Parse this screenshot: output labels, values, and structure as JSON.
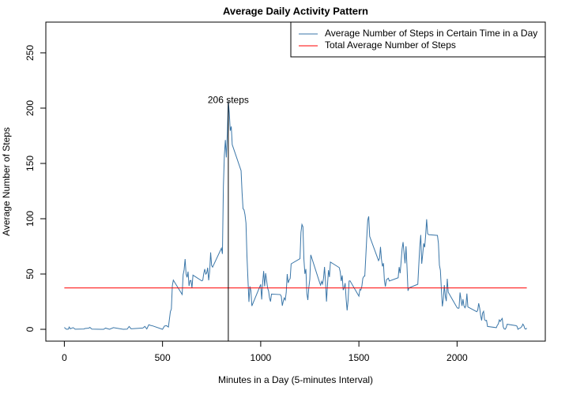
{
  "chart_data": {
    "type": "line",
    "title": "Average Daily Activity Pattern",
    "x_label": "Minutes in a Day (5-minutes Interval)",
    "y_label": "Average Number of Steps",
    "xlim": [
      -94.2,
      2449.2
    ],
    "ylim": [
      -10.7,
      277.8
    ],
    "xticks": [
      0,
      500,
      1000,
      1500,
      2000
    ],
    "yticks": [
      0,
      50,
      100,
      150,
      200,
      250
    ],
    "legend_position": "topright",
    "series": [
      {
        "name": "Average Number of Steps in Certain Time in a Day",
        "color": "#3a76a8",
        "x": [
          0,
          10,
          20,
          25,
          30,
          45,
          55,
          100,
          105,
          125,
          130,
          140,
          200,
          210,
          230,
          250,
          300,
          320,
          330,
          340,
          400,
          410,
          420,
          430,
          440,
          450,
          500,
          510,
          520,
          530,
          540,
          545,
          550,
          555,
          600,
          605,
          610,
          615,
          620,
          625,
          630,
          635,
          640,
          645,
          650,
          655,
          700,
          705,
          710,
          715,
          720,
          725,
          730,
          735,
          740,
          745,
          750,
          755,
          800,
          805,
          810,
          815,
          820,
          825,
          830,
          835,
          840,
          845,
          850,
          855,
          900,
          905,
          910,
          915,
          920,
          925,
          930,
          935,
          940,
          945,
          950,
          955,
          1000,
          1005,
          1010,
          1015,
          1020,
          1025,
          1030,
          1035,
          1040,
          1045,
          1050,
          1055,
          1100,
          1105,
          1110,
          1115,
          1120,
          1125,
          1130,
          1135,
          1140,
          1145,
          1150,
          1155,
          1200,
          1205,
          1210,
          1215,
          1220,
          1225,
          1230,
          1235,
          1240,
          1245,
          1250,
          1255,
          1300,
          1305,
          1310,
          1315,
          1320,
          1325,
          1330,
          1335,
          1340,
          1345,
          1350,
          1355,
          1400,
          1405,
          1410,
          1415,
          1420,
          1425,
          1430,
          1435,
          1440,
          1445,
          1450,
          1455,
          1500,
          1505,
          1510,
          1515,
          1520,
          1525,
          1530,
          1535,
          1540,
          1545,
          1550,
          1555,
          1600,
          1605,
          1610,
          1615,
          1620,
          1625,
          1630,
          1635,
          1640,
          1645,
          1650,
          1655,
          1700,
          1705,
          1710,
          1715,
          1720,
          1725,
          1730,
          1735,
          1740,
          1745,
          1750,
          1755,
          1800,
          1805,
          1810,
          1815,
          1820,
          1825,
          1830,
          1835,
          1840,
          1845,
          1850,
          1855,
          1900,
          1905,
          1910,
          1915,
          1920,
          1925,
          1930,
          1935,
          1940,
          1945,
          1950,
          1955,
          2000,
          2005,
          2010,
          2015,
          2020,
          2025,
          2030,
          2035,
          2040,
          2045,
          2050,
          2055,
          2100,
          2105,
          2110,
          2115,
          2120,
          2125,
          2130,
          2135,
          2140,
          2145,
          2150,
          2155,
          2200,
          2205,
          2210,
          2215,
          2220,
          2225,
          2230,
          2235,
          2240,
          2245,
          2250,
          2255,
          2300,
          2305,
          2310,
          2315,
          2320,
          2325,
          2330,
          2335,
          2340,
          2345,
          2350,
          2355
        ],
        "values": [
          1.7,
          0.1,
          0.1,
          2.1,
          0.5,
          1.5,
          0.1,
          0.3,
          0.7,
          1.1,
          1.8,
          0.2,
          0,
          1.1,
          0,
          1.5,
          0,
          0.2,
          2.6,
          0.5,
          1.2,
          2.6,
          0.3,
          4.1,
          3.5,
          3.1,
          0,
          3,
          3.3,
          2.1,
          16,
          18.3,
          39.4,
          44.5,
          31.5,
          49.3,
          53.8,
          63.5,
          50,
          47,
          52.2,
          39.3,
          44,
          44.2,
          37.4,
          49,
          43.8,
          44.4,
          50.5,
          54.5,
          49.9,
          51,
          55.7,
          44.3,
          52.3,
          69.5,
          57.8,
          56.2,
          73.4,
          68.2,
          129.4,
          157.5,
          171.2,
          155.4,
          177.3,
          206.2,
          195.9,
          179.6,
          183.4,
          167,
          143.5,
          124,
          109.1,
          108.1,
          103.7,
          96,
          66.2,
          45.2,
          24.8,
          38.8,
          35,
          21.1,
          40.6,
          27,
          42.4,
          52.7,
          38.9,
          50.8,
          44.3,
          37.4,
          34.7,
          28.3,
          25.1,
          31.9,
          31.4,
          29.7,
          21.3,
          25.5,
          28.4,
          26.5,
          33.4,
          50,
          42,
          44.6,
          46,
          59.2,
          63.9,
          87.7,
          94.8,
          92.8,
          63.4,
          50.2,
          54.5,
          32.4,
          26.5,
          37.7,
          45.1,
          67.3,
          42.3,
          39.9,
          43.3,
          41,
          46.2,
          56.4,
          42.8,
          25.1,
          40,
          53.5,
          47.3,
          60.8,
          55.8,
          52,
          43.6,
          48.7,
          35.5,
          37.5,
          41.8,
          27.5,
          17.1,
          26.1,
          43.6,
          43.8,
          30,
          36.1,
          35.5,
          38.8,
          46,
          47.8,
          48.1,
          65.3,
          82.9,
          98.7,
          102.1,
          84,
          62.1,
          64.1,
          74.5,
          63.2,
          56.9,
          59.8,
          43.9,
          38.6,
          44.7,
          45.5,
          46.2,
          43.7,
          46.6,
          56.3,
          50.7,
          61.2,
          72.7,
          78.9,
          68.9,
          59.7,
          75.1,
          56.5,
          34.8,
          37.5,
          40.7,
          58,
          74.7,
          85.3,
          59.3,
          67.8,
          77.7,
          74.2,
          85.3,
          99.5,
          86.6,
          85.6,
          84.9,
          77.8,
          58,
          53.4,
          36.3,
          20.7,
          27.4,
          40,
          30.2,
          25.5,
          45.7,
          33.5,
          19.6,
          19,
          19.3,
          33.3,
          26.8,
          21.2,
          27.3,
          21.3,
          19.5,
          21.3,
          32.3,
          20.2,
          15.9,
          17.2,
          23.5,
          19.2,
          12.5,
          8,
          14.7,
          16.3,
          8.7,
          7.8,
          8.1,
          2.6,
          1.5,
          3.7,
          4.8,
          8.5,
          7.1,
          8.7,
          9.8,
          2.2,
          0.3,
          0.1,
          1.6,
          4.6,
          3.3,
          2.8,
          0,
          0.8,
          1,
          1.6,
          2.6,
          4.7,
          3.3,
          0.6,
          0.2,
          1.1
        ]
      }
    ],
    "mean_line": {
      "name": "Total Average Number of Steps",
      "color": "#ff0000",
      "value": 37.4
    },
    "max_marker": {
      "x": 835,
      "y": 206.2,
      "color": "#000000",
      "label": "206  steps"
    }
  }
}
